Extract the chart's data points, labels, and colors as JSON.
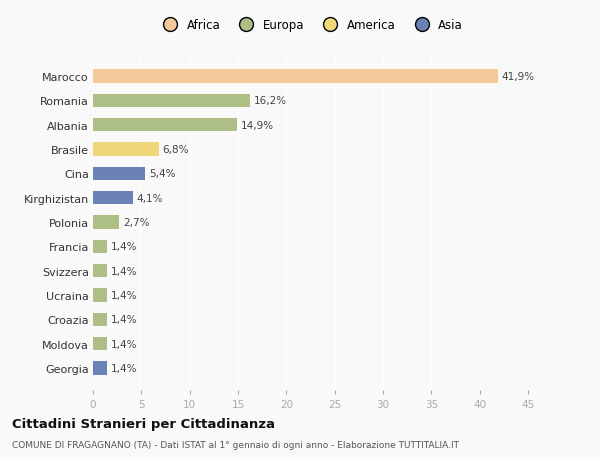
{
  "categories": [
    "Marocco",
    "Romania",
    "Albania",
    "Brasile",
    "Cina",
    "Kirghizistan",
    "Polonia",
    "Francia",
    "Svizzera",
    "Ucraina",
    "Croazia",
    "Moldova",
    "Georgia"
  ],
  "values": [
    41.9,
    16.2,
    14.9,
    6.8,
    5.4,
    4.1,
    2.7,
    1.4,
    1.4,
    1.4,
    1.4,
    1.4,
    1.4
  ],
  "labels": [
    "41,9%",
    "16,2%",
    "14,9%",
    "6,8%",
    "5,4%",
    "4,1%",
    "2,7%",
    "1,4%",
    "1,4%",
    "1,4%",
    "1,4%",
    "1,4%",
    "1,4%"
  ],
  "colors": [
    "#F5C89A",
    "#ADBF85",
    "#ADBF85",
    "#F0D87A",
    "#6B82B8",
    "#6B82B8",
    "#ADBF85",
    "#ADBF85",
    "#ADBF85",
    "#ADBF85",
    "#ADBF85",
    "#ADBF85",
    "#6B82B8"
  ],
  "legend": [
    {
      "label": "Africa",
      "color": "#F5C89A"
    },
    {
      "label": "Europa",
      "color": "#ADBF85"
    },
    {
      "label": "America",
      "color": "#F0D87A"
    },
    {
      "label": "Asia",
      "color": "#6B82B8"
    }
  ],
  "xlim": [
    0,
    45
  ],
  "xticks": [
    0,
    5,
    10,
    15,
    20,
    25,
    30,
    35,
    40,
    45
  ],
  "title": "Cittadini Stranieri per Cittadinanza",
  "subtitle": "COMUNE DI FRAGAGNANO (TA) - Dati ISTAT al 1° gennaio di ogni anno - Elaborazione TUTTITALIA.IT",
  "background_color": "#f9f9f9",
  "bar_height": 0.55
}
